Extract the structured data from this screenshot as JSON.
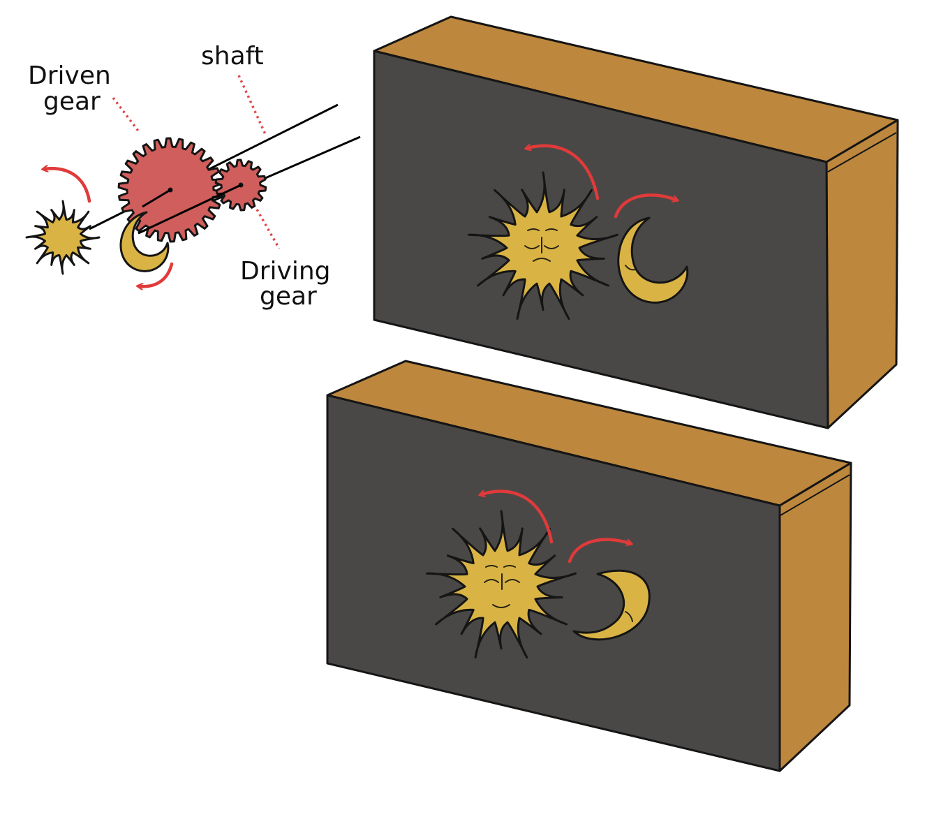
{
  "labels": {
    "driven_gear_line1": "Driven",
    "driven_gear_line2": "gear",
    "shaft": "shaft",
    "driving_gear_line1": "Driving",
    "driving_gear_line2": "gear"
  },
  "colors": {
    "gear": "#d05e5c",
    "sun_moon": "#d9b445",
    "box_front": "#4a4846",
    "box_side": "#bd873e",
    "arrow": "#e03a3a"
  }
}
